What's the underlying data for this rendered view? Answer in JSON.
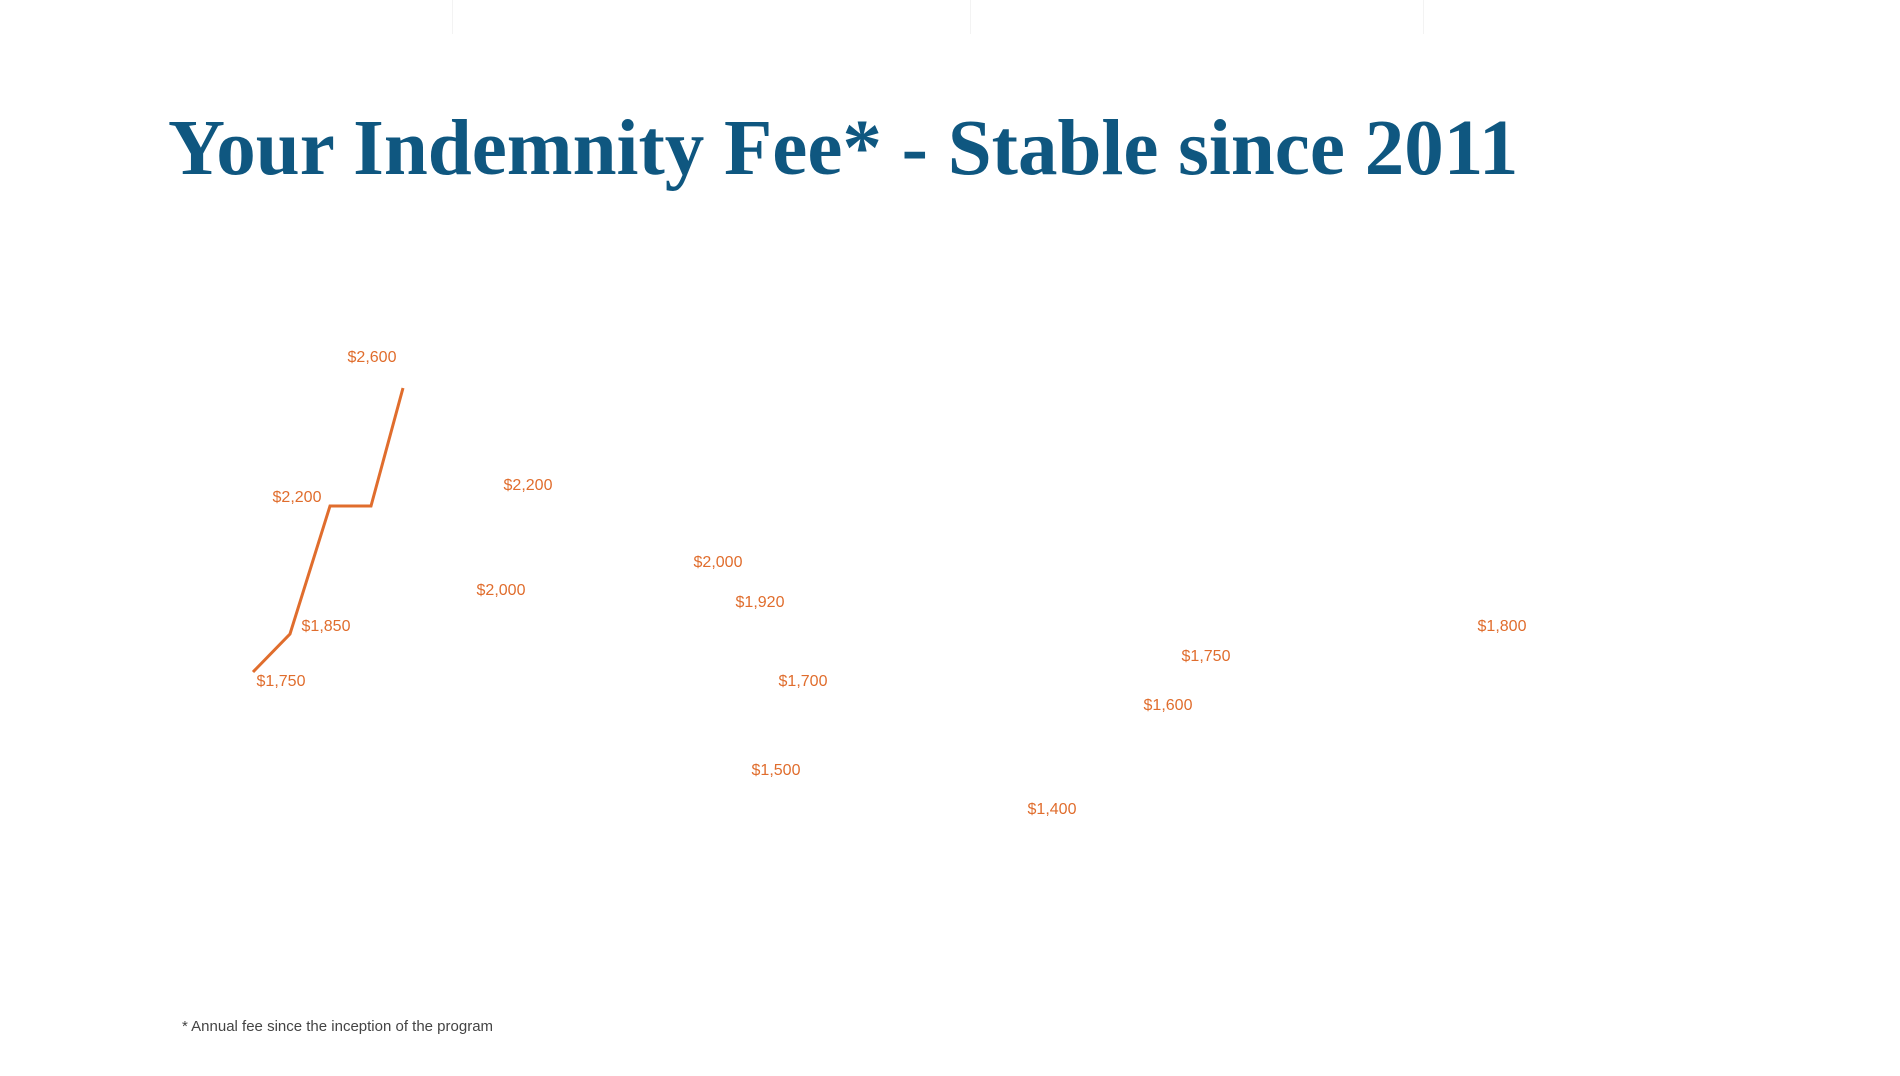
{
  "title": "Your Indemnity Fee* - Stable since 2011",
  "footnote": "* Annual fee since the inception of the program",
  "colors": {
    "title": "#0f5780",
    "series": "#e06d2d",
    "footnote": "#444444"
  },
  "chart_data": {
    "type": "line",
    "title": "Your Indemnity Fee* - Stable since 2011",
    "xlabel": "",
    "ylabel": "",
    "grid": false,
    "legend": "none",
    "ylim": [
      1300,
      2700
    ],
    "series": [
      {
        "name": "Annual indemnity fee",
        "values": [
          1750,
          1850,
          2200,
          2200,
          2600,
          2000,
          2200,
          2000,
          1500,
          1920,
          1700,
          1400,
          1600,
          1750,
          1800
        ],
        "labels": [
          "$1,750",
          "$1,850",
          "$2,200",
          "$2,200",
          "$2,600",
          "$2,000",
          "$2,200",
          "$2,000",
          "$1,500",
          "$1,920",
          "$1,700",
          "$1,400",
          "$1,600",
          "$1,750",
          "$1,800"
        ],
        "line_drawn_points": 5
      }
    ]
  }
}
